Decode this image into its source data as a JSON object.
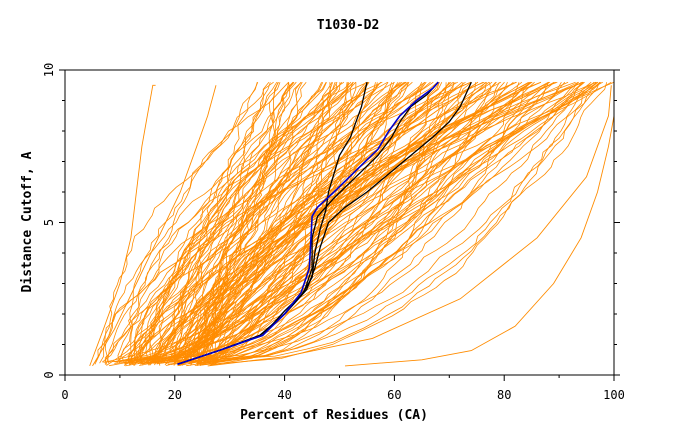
{
  "chart_data": {
    "type": "line",
    "title": "T1030-D2",
    "xlabel": "Percent of Residues (CA)",
    "ylabel": "Distance Cutoff, A",
    "xlim": [
      0,
      100
    ],
    "ylim": [
      0,
      10
    ],
    "xticks": [
      "0",
      "20",
      "40",
      "60",
      "80",
      "100"
    ],
    "yticks": [
      "0",
      "5",
      "10"
    ],
    "grid": false,
    "colors": {
      "background_models": "#ff8c00",
      "highlight_black": "#000000",
      "highlight_blue": "#0000cc"
    },
    "background_curves": {
      "count": 160,
      "start_percent_range": [
        5,
        27
      ],
      "end_percent_range": [
        35,
        100
      ],
      "extremes": [
        {
          "x": [
            4.5,
            7,
            10,
            12,
            13,
            14,
            15,
            16,
            16.5
          ],
          "y": [
            0.3,
            1.5,
            3,
            4.5,
            6,
            7.5,
            8.5,
            9.5,
            9.5
          ]
        },
        {
          "x": [
            5,
            9,
            13,
            17,
            21,
            24,
            26,
            27.5
          ],
          "y": [
            0.3,
            1.5,
            3,
            4.5,
            6,
            7.5,
            8.5,
            9.5
          ]
        },
        {
          "x": [
            51,
            65,
            74,
            82,
            89,
            94,
            97,
            99,
            100,
            100
          ],
          "y": [
            0.3,
            0.5,
            0.8,
            1.6,
            3,
            4.5,
            6,
            7.5,
            8.5,
            9.5
          ]
        },
        {
          "x": [
            26,
            40,
            56,
            72,
            86,
            95,
            99,
            99.5
          ],
          "y": [
            0.3,
            0.6,
            1.2,
            2.5,
            4.5,
            6.5,
            8.5,
            9.5
          ]
        }
      ]
    },
    "series": [
      {
        "color": "#000000",
        "x": [
          20.5,
          28,
          35.5,
          40,
          43,
          45,
          45.5,
          46.5,
          47.5,
          48,
          49,
          50,
          52,
          53,
          54,
          54.5,
          55
        ],
        "y": [
          0.35,
          0.8,
          1.3,
          2.0,
          2.6,
          3.2,
          4.0,
          4.8,
          5.4,
          6.0,
          6.6,
          7.2,
          7.8,
          8.3,
          8.8,
          9.2,
          9.6
        ]
      },
      {
        "color": "#000000",
        "x": [
          20.5,
          28,
          35.5,
          40,
          44,
          45.5,
          46.5,
          48,
          51,
          55,
          59,
          63,
          67,
          70,
          72,
          73,
          74
        ],
        "y": [
          0.35,
          0.8,
          1.3,
          2.0,
          2.8,
          3.5,
          4.2,
          5.0,
          5.5,
          6.0,
          6.6,
          7.2,
          7.8,
          8.3,
          8.8,
          9.2,
          9.6
        ]
      },
      {
        "color": "#000000",
        "x": [
          20.5,
          28,
          36,
          40,
          43.5,
          45,
          45,
          46,
          49,
          53,
          57,
          59.5,
          61,
          63,
          66,
          68
        ],
        "y": [
          0.35,
          0.8,
          1.3,
          2.1,
          2.7,
          3.5,
          4.5,
          5.2,
          5.8,
          6.5,
          7.2,
          7.8,
          8.3,
          8.8,
          9.2,
          9.6
        ]
      },
      {
        "color": "#0000cc",
        "x": [
          20.5,
          28,
          36,
          40,
          43,
          44.5,
          44.8,
          45,
          46,
          49,
          53,
          57,
          59,
          61,
          64,
          67,
          68
        ],
        "y": [
          0.35,
          0.8,
          1.3,
          2.0,
          2.7,
          3.5,
          4.5,
          5.2,
          5.5,
          6.0,
          6.7,
          7.4,
          8.0,
          8.5,
          9.0,
          9.4,
          9.6
        ]
      }
    ]
  }
}
